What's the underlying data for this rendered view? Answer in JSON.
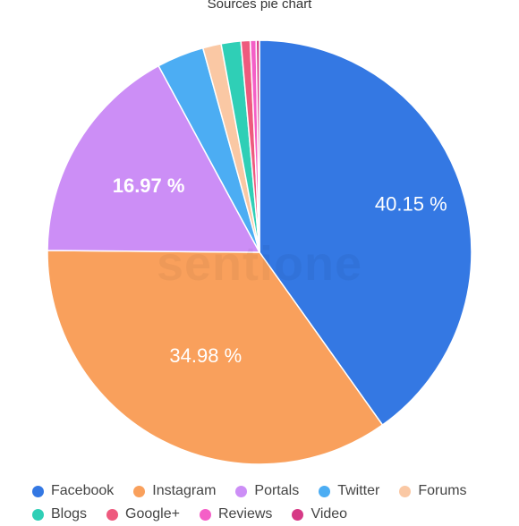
{
  "chart_data": {
    "type": "pie",
    "title": "Sources pie chart",
    "slices": [
      {
        "name": "Facebook",
        "value": 40.15,
        "label": "40.15 %",
        "color": "#3478e3"
      },
      {
        "name": "Instagram",
        "value": 34.98,
        "label": "34.98 %",
        "color": "#f9a05c"
      },
      {
        "name": "Portals",
        "value": 16.97,
        "label": "16.97 %",
        "color": "#cc8ef6"
      },
      {
        "name": "Twitter",
        "value": 3.6,
        "label": "",
        "color": "#4cadf3"
      },
      {
        "name": "Forums",
        "value": 1.4,
        "label": "",
        "color": "#fac8a4"
      },
      {
        "name": "Blogs",
        "value": 1.5,
        "label": "",
        "color": "#2fcfb6"
      },
      {
        "name": "Google+",
        "value": 0.7,
        "label": "",
        "color": "#ee5a7e"
      },
      {
        "name": "Reviews",
        "value": 0.45,
        "label": "",
        "color": "#f45fc7"
      },
      {
        "name": "Video",
        "value": 0.25,
        "label": "",
        "color": "#d63a86"
      }
    ],
    "legend_position": "bottom"
  },
  "watermark": "sentione"
}
